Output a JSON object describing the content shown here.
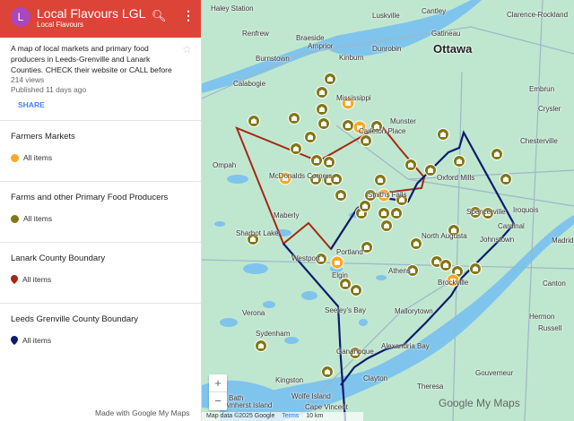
{
  "header": {
    "avatar_letter": "L",
    "title": "Local Flavours LGL",
    "subtitle": "Local Flavours",
    "search_icon": "search-icon",
    "menu_icon": "more-vert-icon"
  },
  "info": {
    "description": "A map of local markets and primary food producers in Leeds-Grenville and Lanark Counties. CHECK their website or CALL before",
    "views": "214 views",
    "published": "Published 11 days ago",
    "share": "SHARE"
  },
  "layers": [
    {
      "title": "Farmers Markets",
      "item": "All items",
      "color": "#f9a825",
      "icon": "circle"
    },
    {
      "title": "Farms and other Primary Food Producers",
      "item": "All items",
      "color": "#827717",
      "icon": "circle"
    },
    {
      "title": "Lanark County Boundary",
      "item": "All items",
      "color": "#a52714",
      "icon": "pin"
    },
    {
      "title": "Leeds Grenville County Boundary",
      "item": "All items",
      "color": "#0d1b6e",
      "icon": "pin"
    }
  ],
  "footer": "Made with Google My Maps",
  "map": {
    "places": [
      "Haley Station",
      "Luskville",
      "Gatineau",
      "Ottawa",
      "Renfrew",
      "Braeside",
      "Arnprior",
      "Kinburn",
      "Dunrobin",
      "Burnstown",
      "Calabogie",
      "Mississippi",
      "Munster",
      "Embrun",
      "Carleton Place",
      "Chesterville",
      "Ompah",
      "McDonalds Corners",
      "Oxford Mills",
      "Iroquois",
      "Smiths Falls",
      "Spencerville",
      "Cardinal",
      "Maberly",
      "Sharbot Lake",
      "Westport",
      "North Augusta",
      "Johnstown",
      "Portland",
      "Athens",
      "Brockville",
      "Elgin",
      "Mallorytown",
      "Seeley's Bay",
      "Gananoque",
      "Alexandria Bay",
      "Kingston",
      "Clayton",
      "Theresa",
      "Gouverneur",
      "Wolfe Island",
      "Amherst Island",
      "Cape Vincent",
      "Verona",
      "Sydenham",
      "Canton",
      "Madrid",
      "Hermon",
      "Russell",
      "Bath",
      "Crysler",
      "Clarence-Rockland",
      "Cantley"
    ],
    "zoom_in": "+",
    "zoom_out": "−",
    "attribution": "Map data ©2025 Google",
    "terms": "Terms",
    "scale": "10 km",
    "logo": "Google My Maps",
    "colors": {
      "land": "#bfe7cf",
      "water": "#7fc4ec",
      "lanark": "#a52714",
      "leeds": "#0d1b6e",
      "market": "#f9a825",
      "farm": "#827717"
    }
  }
}
